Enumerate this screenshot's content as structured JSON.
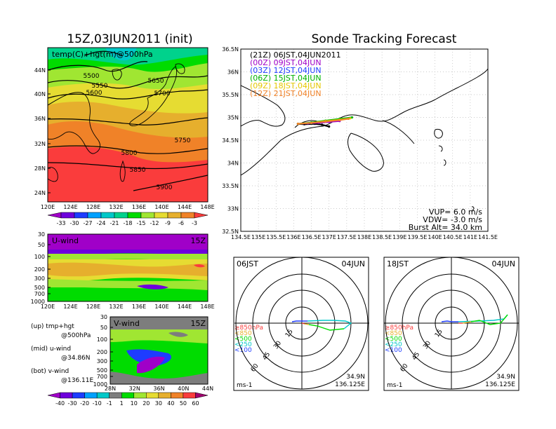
{
  "left_title": "15Z,03JUN2011 (init)",
  "right_title": "Sonde Tracking Forecast",
  "top_map": {
    "label": "temp(C)+hgt(m)@500hPa",
    "lat_labels": [
      "44N",
      "40N",
      "36N",
      "32N",
      "28N",
      "24N"
    ],
    "lon_labels": [
      "120E",
      "124E",
      "128E",
      "132E",
      "136E",
      "140E",
      "144E",
      "148E"
    ],
    "contour_labels": [
      "5500",
      "5550",
      "5600",
      "5650",
      "5700",
      "5750",
      "5800",
      "5850",
      "5900"
    ],
    "colorbar": [
      "-33",
      "-30",
      "-27",
      "-24",
      "-21",
      "-18",
      "-15",
      "-12",
      "-9",
      "-6",
      "-3"
    ],
    "colors": [
      "#a000c8",
      "#6e00dc",
      "#1e3cff",
      "#00a0ff",
      "#00c8c8",
      "#00d28c",
      "#00dc00",
      "#a0e632",
      "#e6dc32",
      "#e6af2d",
      "#f08228",
      "#fa3c3c"
    ]
  },
  "uwind": {
    "label": "U-wind",
    "time": "15Z",
    "levels": [
      "30",
      "50",
      "100",
      "200",
      "300",
      "500",
      "700",
      "1000"
    ],
    "lon_labels": [
      "120E",
      "124E",
      "128E",
      "132E",
      "136E",
      "140E",
      "144E",
      "148E"
    ]
  },
  "vwind": {
    "label": "V-wind",
    "time": "15Z",
    "levels": [
      "30",
      "50",
      "100",
      "200",
      "300",
      "500",
      "700",
      "1000"
    ],
    "lat_labels": [
      "28N",
      "32N",
      "36N",
      "40N",
      "44N"
    ]
  },
  "notes": [
    {
      "a": "(up)  tmp+hgt",
      "b": "@500hPa"
    },
    {
      "a": "(mid)  u-wind",
      "b": "@34.86N"
    },
    {
      "a": "(bot)  v-wind",
      "b": "@136.11E"
    }
  ],
  "wind_colorbar": [
    "-40",
    "-30",
    "-20",
    "-10",
    "-1",
    "1",
    "10",
    "20",
    "30",
    "40",
    "50",
    "60"
  ],
  "wind_colors": [
    "#a000c8",
    "#6e00dc",
    "#1e3cff",
    "#00a0ff",
    "#00c8c8",
    "#7d7d7d",
    "#00dc00",
    "#a0e632",
    "#e6dc32",
    "#e6af2d",
    "#f08228",
    "#fa3c3c",
    "#a0006e"
  ],
  "track_map": {
    "lat_labels": [
      "36.5N",
      "36N",
      "35.5N",
      "35N",
      "34.5N",
      "34N",
      "33.5N",
      "33N",
      "32.5N"
    ],
    "lon_labels": [
      "134.5E",
      "135E",
      "135.5E",
      "136E",
      "136.5E",
      "137E",
      "137.5E",
      "138E",
      "138.5E",
      "139E",
      "139.5E",
      "140E",
      "140.5E",
      "141E",
      "141.5E"
    ],
    "legend": [
      {
        "text": "(21Z)  06JST,04JUN2011",
        "color": "#000000"
      },
      {
        "text": "(00Z)  09JST,04JUN",
        "color": "#a000c8"
      },
      {
        "text": "(03Z)  12JST,04JUN",
        "color": "#1e3cff"
      },
      {
        "text": "(06Z)  15JST,04JUN",
        "color": "#00b400"
      },
      {
        "text": "(09Z)  18JST,04JUN",
        "color": "#e6c800"
      },
      {
        "text": "(12Z)  21JST,04JUN",
        "color": "#f08228"
      }
    ],
    "info": [
      "VUP=  6.0  m/s",
      "VDW= -3.0  m/s",
      "Burst Alt=  34.0  km"
    ]
  },
  "chart_data": [
    {
      "type": "line",
      "title": "Sonde Tracking Forecast",
      "xlim": [
        134.5,
        141.5
      ],
      "ylim": [
        32.5,
        36.5
      ],
      "series": [
        {
          "name": "(21Z)  06JST,04JUN2011",
          "x": [
            136.12,
            136.3,
            136.6,
            136.8,
            137.0
          ],
          "y": [
            34.86,
            34.85,
            34.86,
            34.84,
            34.8
          ]
        },
        {
          "name": "(00Z)  09JST,04JUN",
          "x": [
            136.12,
            136.4,
            136.7,
            137.0,
            137.3
          ],
          "y": [
            34.86,
            34.87,
            34.88,
            34.9,
            34.92
          ]
        },
        {
          "name": "(03Z)  12JST,04JUN",
          "x": [
            136.12,
            136.5,
            136.9,
            137.3,
            137.6
          ],
          "y": [
            34.86,
            34.88,
            34.92,
            34.96,
            34.99
          ]
        },
        {
          "name": "(06Z)  15JST,04JUN",
          "x": [
            136.12,
            136.5,
            136.9,
            137.3,
            137.65
          ],
          "y": [
            34.86,
            34.89,
            34.93,
            34.97,
            35.0
          ]
        },
        {
          "name": "(09Z)  18JST,04JUN",
          "x": [
            136.12,
            136.5,
            136.9,
            137.3,
            137.6
          ],
          "y": [
            34.86,
            34.88,
            34.92,
            34.95,
            34.98
          ]
        },
        {
          "name": "(12Z)  21JST,04JUN",
          "x": [
            136.12,
            136.5,
            136.9,
            137.3,
            137.55
          ],
          "y": [
            34.86,
            34.88,
            34.91,
            34.94,
            34.97
          ]
        }
      ]
    }
  ],
  "polar1": {
    "time": "06JST",
    "date": "04JUN",
    "unit": "ms-1",
    "ring_labels": [
      "15",
      "30",
      "45",
      "60"
    ],
    "coord": [
      "34.9N",
      "136.125E"
    ],
    "levels": [
      "≥850hPa",
      "<850",
      "<500",
      "<250",
      "<100"
    ],
    "level_colors": [
      "#fa3c3c",
      "#e6af2d",
      "#00dc00",
      "#00c8c8",
      "#1e3cff"
    ]
  },
  "polar2": {
    "time": "18JST",
    "date": "04JUN",
    "unit": "ms-1",
    "ring_labels": [
      "15",
      "30",
      "45",
      "60"
    ],
    "coord": [
      "34.9N",
      "136.125E"
    ],
    "levels": [
      "≥850hPa",
      "<850",
      "<500",
      "<250",
      "<100"
    ],
    "level_colors": [
      "#fa3c3c",
      "#e6af2d",
      "#00dc00",
      "#00c8c8",
      "#1e3cff"
    ]
  }
}
